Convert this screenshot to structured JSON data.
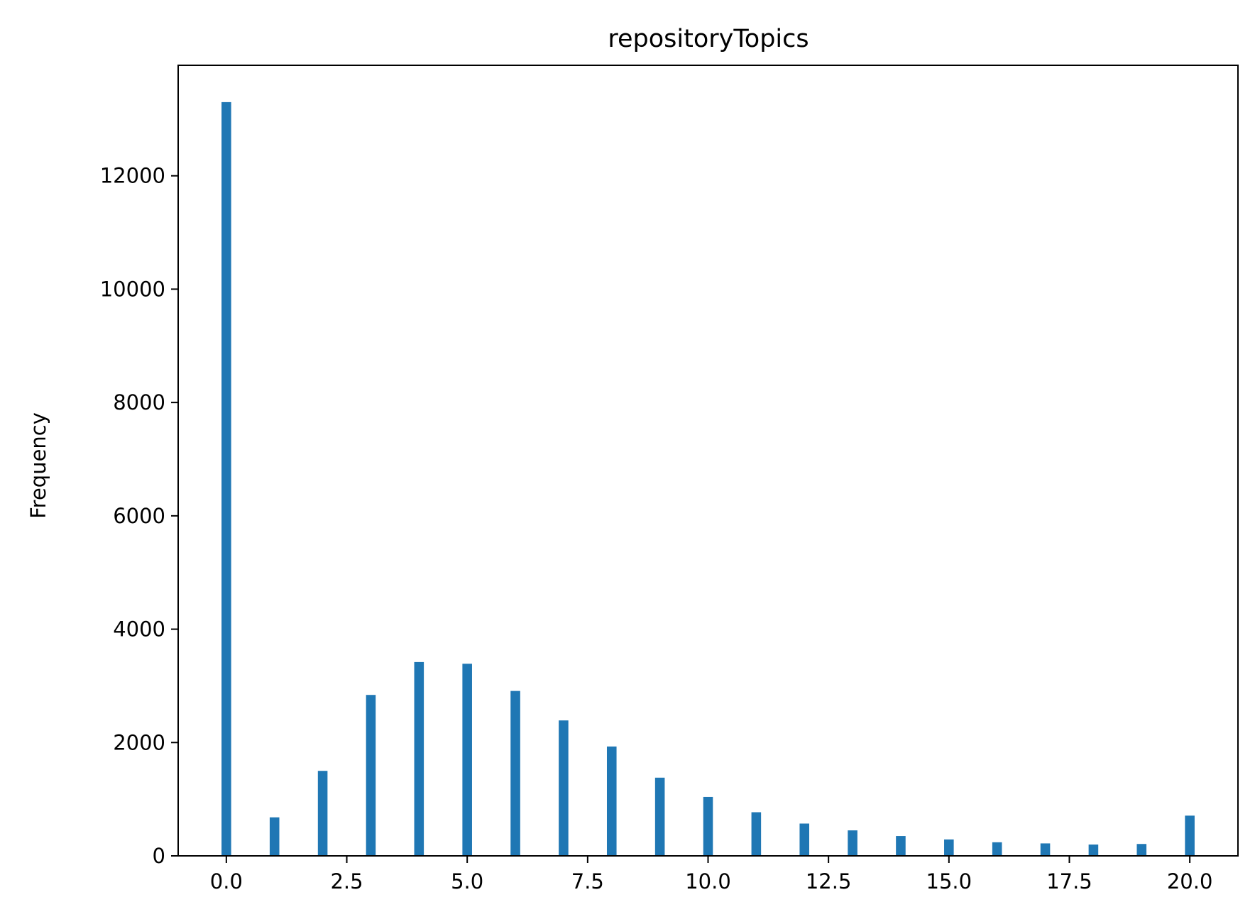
{
  "chart_data": {
    "type": "bar",
    "title": "repositoryTopics",
    "xlabel": "",
    "ylabel": "Frequency",
    "x": [
      0,
      1,
      2,
      3,
      4,
      5,
      6,
      7,
      8,
      9,
      10,
      11,
      12,
      13,
      14,
      15,
      16,
      17,
      18,
      19,
      20
    ],
    "values": [
      13300,
      680,
      1500,
      2840,
      3420,
      3390,
      2910,
      2390,
      1930,
      1380,
      1040,
      770,
      570,
      450,
      350,
      290,
      240,
      220,
      200,
      210,
      710
    ],
    "xlim": [
      -1.0,
      21.0
    ],
    "ylim": [
      0,
      13950
    ],
    "xticks": [
      0.0,
      2.5,
      5.0,
      7.5,
      10.0,
      12.5,
      15.0,
      17.5,
      20.0
    ],
    "xtick_labels": [
      "0.0",
      "2.5",
      "5.0",
      "7.5",
      "10.0",
      "12.5",
      "15.0",
      "17.5",
      "20.0"
    ],
    "yticks": [
      0,
      2000,
      4000,
      6000,
      8000,
      10000,
      12000
    ],
    "ytick_labels": [
      "0",
      "2000",
      "4000",
      "6000",
      "8000",
      "10000",
      "12000"
    ],
    "grid": false,
    "legend": "none",
    "bar_color": "#1f77b4"
  }
}
